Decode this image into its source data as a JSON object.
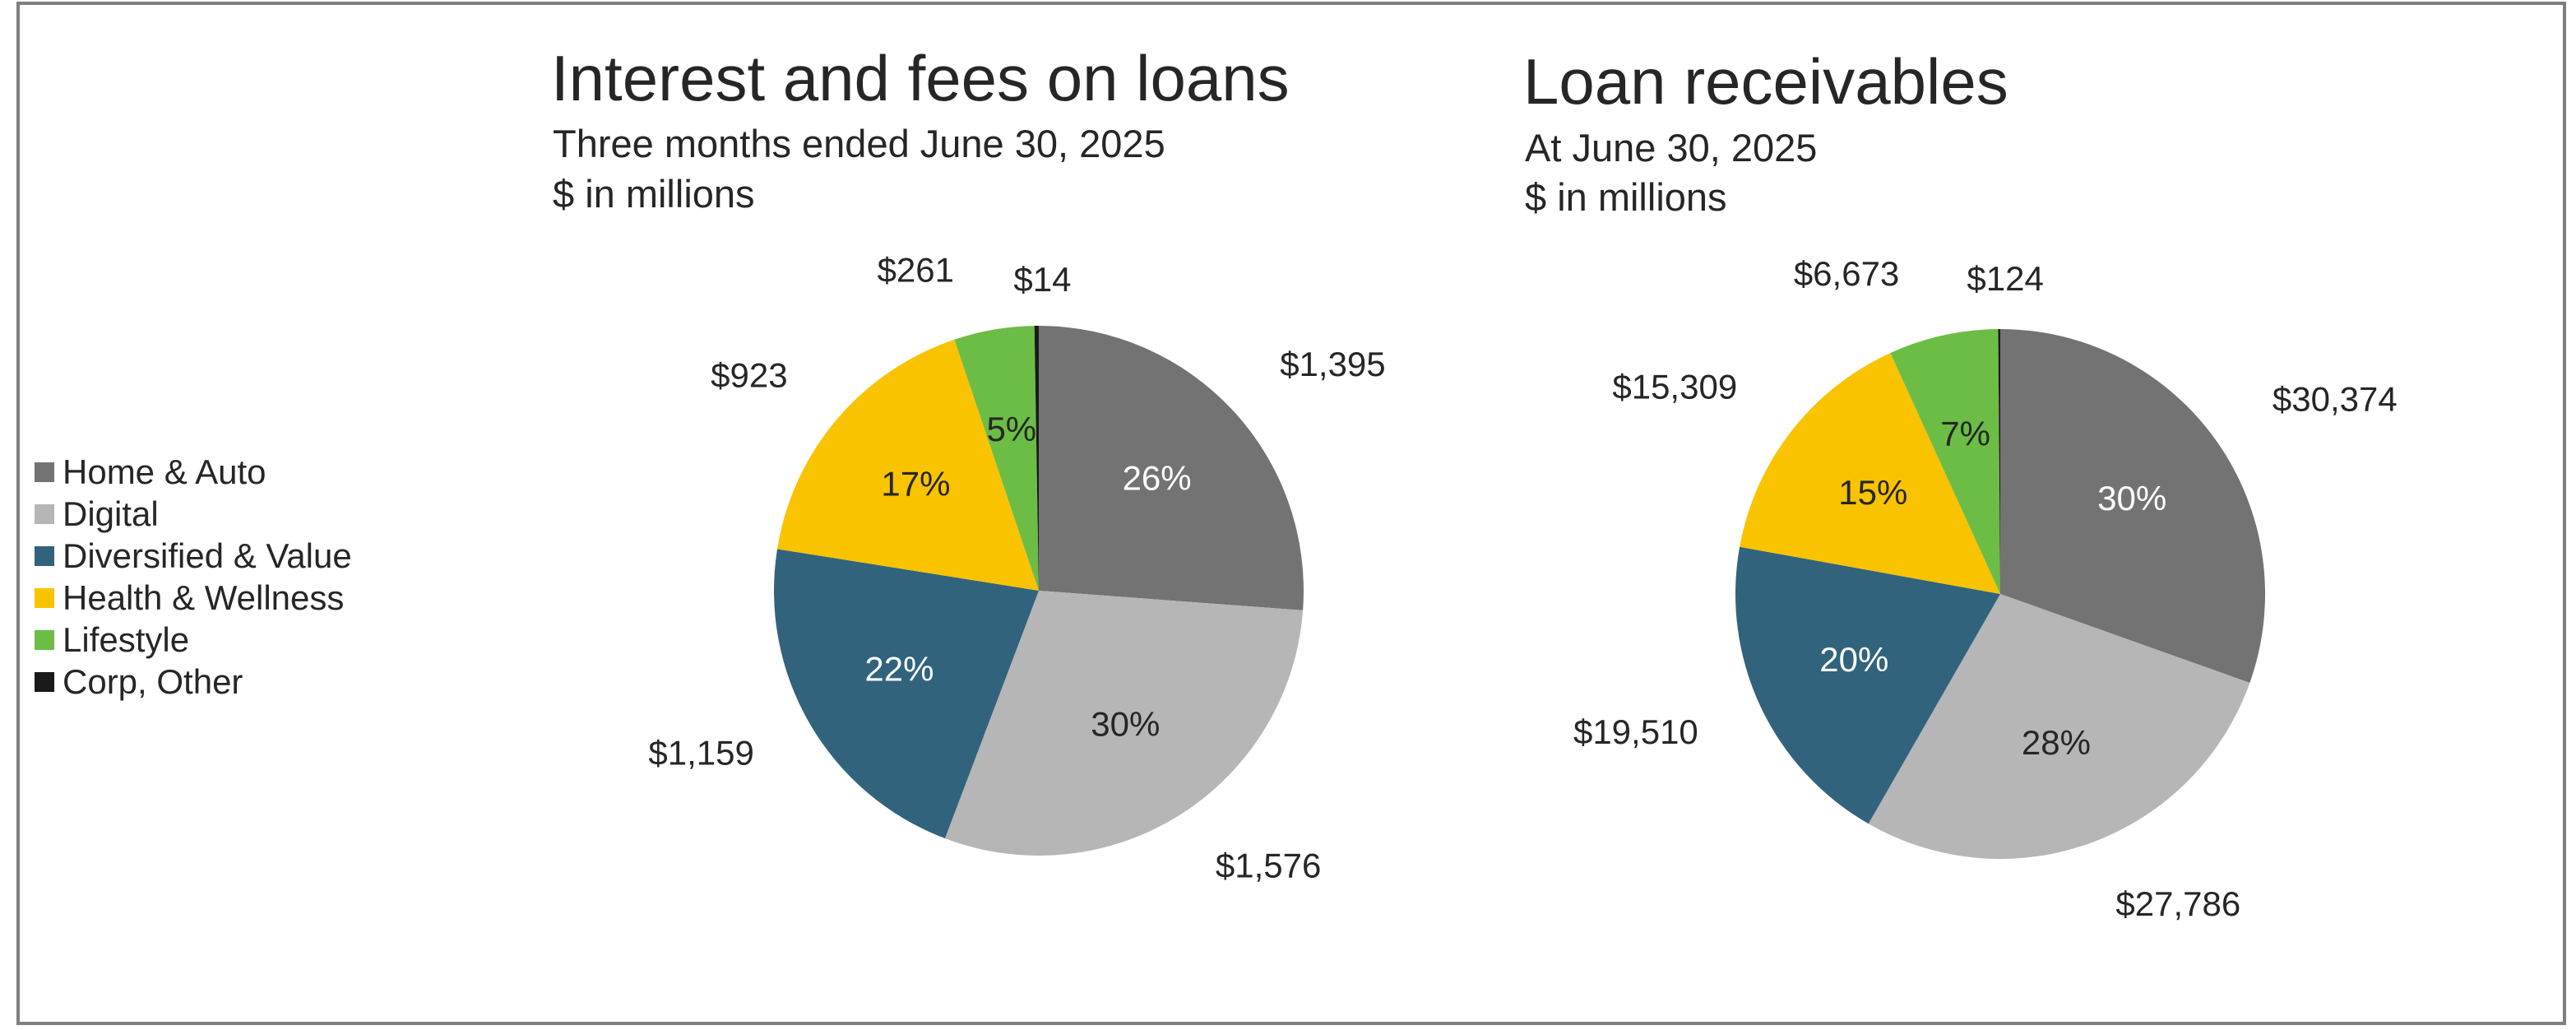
{
  "colors": {
    "Home & Auto": "#737373",
    "Digital": "#b6b6b6",
    "Diversified & Value": "#31637c",
    "Health & Wellness": "#f9c300",
    "Lifestyle": "#6cbd45",
    "Corp, Other": "#1a1a1a"
  },
  "legend": {
    "placement": "left",
    "items": [
      "Home & Auto",
      "Digital",
      "Diversified & Value",
      "Health & Wellness",
      "Lifestyle",
      "Corp, Other"
    ]
  },
  "chart_data": [
    {
      "type": "pie",
      "title": "Interest and fees on loans",
      "subtitle": "Three months ended June 30, 2025",
      "unit": "$ in millions",
      "categories": [
        "Home & Auto",
        "Digital",
        "Diversified & Value",
        "Health & Wellness",
        "Lifestyle",
        "Corp, Other"
      ],
      "values": [
        1395,
        1576,
        1159,
        923,
        261,
        14
      ],
      "value_labels": [
        "$1,395",
        "$1,576",
        "$1,159",
        "$923",
        "$261",
        "$14"
      ],
      "percent_labels": [
        "26%",
        "30%",
        "22%",
        "17%",
        "5%",
        ""
      ],
      "start": "12 o'clock, clockwise"
    },
    {
      "type": "pie",
      "title": "Loan receivables",
      "subtitle": "At June 30, 2025",
      "unit": "$ in millions",
      "categories": [
        "Home & Auto",
        "Digital",
        "Diversified & Value",
        "Health & Wellness",
        "Lifestyle",
        "Corp, Other"
      ],
      "values": [
        30374,
        27786,
        19510,
        15309,
        6673,
        124
      ],
      "value_labels": [
        "$30,374",
        "$27,786",
        "$19,510",
        "$15,309",
        "$6,673",
        "$124"
      ],
      "percent_labels": [
        "30%",
        "28%",
        "20%",
        "15%",
        "7%",
        ""
      ],
      "start": "12 o'clock, clockwise"
    }
  ]
}
